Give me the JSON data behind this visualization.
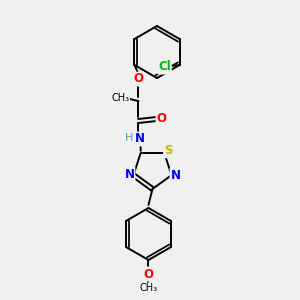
{
  "background_color": "#f0f0f0",
  "bond_color": "#000000",
  "atom_colors": {
    "Cl": "#00bb00",
    "O": "#ff0000",
    "N": "#0000ff",
    "S": "#ccbb00",
    "H": "#5599aa",
    "C": "#000000"
  },
  "figsize": [
    3.0,
    3.0
  ],
  "dpi": 100,
  "lw": 1.4,
  "sep": 2.0,
  "fs": 8.5
}
